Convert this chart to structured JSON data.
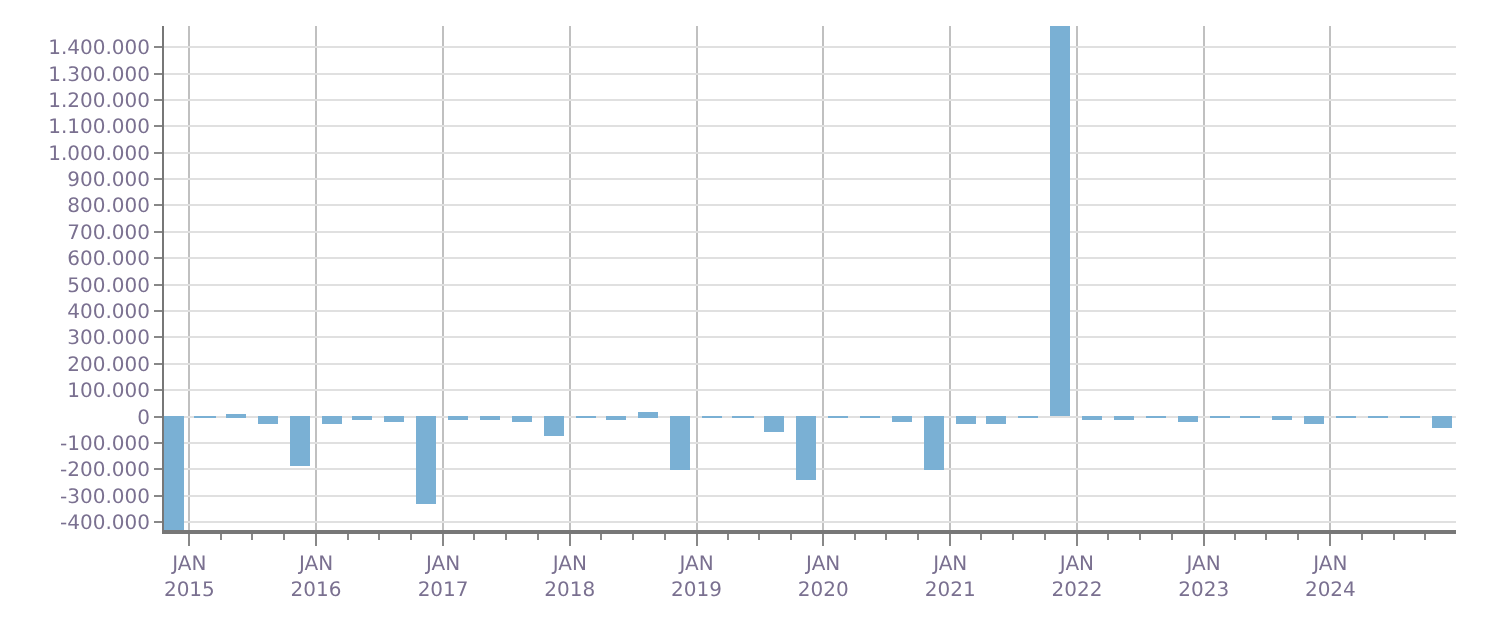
{
  "chart_data": {
    "type": "bar",
    "color": "#7ab0d4",
    "x": [
      "2014-11-15",
      "2015-02-15",
      "2015-05-15",
      "2015-08-15",
      "2015-11-15",
      "2016-02-15",
      "2016-05-15",
      "2016-08-15",
      "2016-11-15",
      "2017-02-15",
      "2017-05-15",
      "2017-08-15",
      "2017-11-15",
      "2018-02-15",
      "2018-05-15",
      "2018-08-15",
      "2018-11-15",
      "2019-02-15",
      "2019-05-15",
      "2019-08-15",
      "2019-11-15",
      "2020-02-15",
      "2020-05-15",
      "2020-08-15",
      "2020-11-15",
      "2021-02-15",
      "2021-05-15",
      "2021-08-15",
      "2021-11-15",
      "2022-02-15",
      "2022-05-15",
      "2022-08-15",
      "2022-11-15",
      "2023-02-15",
      "2023-05-15",
      "2023-08-15",
      "2023-11-15",
      "2024-02-15",
      "2024-05-15",
      "2024-08-15",
      "2024-11-15"
    ],
    "values": [
      -430000,
      -3000,
      8000,
      -32000,
      -184000,
      -25000,
      -12000,
      -18000,
      -335000,
      -12000,
      -12000,
      -18000,
      -76000,
      -5000,
      -12000,
      15000,
      -205000,
      -4000,
      -4000,
      -56000,
      -242000,
      -3000,
      -3000,
      -18000,
      -199000,
      -25000,
      -25000,
      -4000,
      1480000,
      -12000,
      -12000,
      -5000,
      -18000,
      -4000,
      -4000,
      -12000,
      -25000,
      -4000,
      -4000,
      -4000,
      -41000
    ],
    "xlim": [
      "2014-10-20",
      "2024-12-28"
    ],
    "xticks": [
      {
        "value": "2015-01-01",
        "label": "JAN\n2015"
      },
      {
        "value": "2016-01-01",
        "label": "JAN\n2016"
      },
      {
        "value": "2017-01-01",
        "label": "JAN\n2017"
      },
      {
        "value": "2018-01-01",
        "label": "JAN\n2018"
      },
      {
        "value": "2019-01-01",
        "label": "JAN\n2019"
      },
      {
        "value": "2020-01-01",
        "label": "JAN\n2020"
      },
      {
        "value": "2021-01-01",
        "label": "JAN\n2021"
      },
      {
        "value": "2022-01-01",
        "label": "JAN\n2022"
      },
      {
        "value": "2023-01-01",
        "label": "JAN\n2023"
      },
      {
        "value": "2024-01-01",
        "label": "JAN\n2024"
      }
    ],
    "ylim": [
      -430000,
      1480000
    ],
    "yticks": [
      {
        "value": -400000,
        "label": "-400.000"
      },
      {
        "value": -300000,
        "label": "-300.000"
      },
      {
        "value": -200000,
        "label": "-200.000"
      },
      {
        "value": -100000,
        "label": "-100.000"
      },
      0,
      {
        "value": 100000,
        "label": "100.000"
      },
      {
        "value": 200000,
        "label": "200.000"
      },
      {
        "value": 300000,
        "label": "300.000"
      },
      {
        "value": 400000,
        "label": "400.000"
      },
      {
        "value": 500000,
        "label": "500.000"
      },
      {
        "value": 600000,
        "label": "600.000"
      },
      {
        "value": 700000,
        "label": "700.000"
      },
      {
        "value": 800000,
        "label": "800.000"
      },
      {
        "value": 900000,
        "label": "900.000"
      },
      {
        "value": 1000000,
        "label": "1.000.000"
      },
      {
        "value": 1100000,
        "label": "1.100.000"
      },
      {
        "value": 1200000,
        "label": "1.200.000"
      },
      {
        "value": 1300000,
        "label": "1.300.000"
      },
      {
        "value": 1400000,
        "label": "1.400.000"
      }
    ],
    "grid": true
  }
}
